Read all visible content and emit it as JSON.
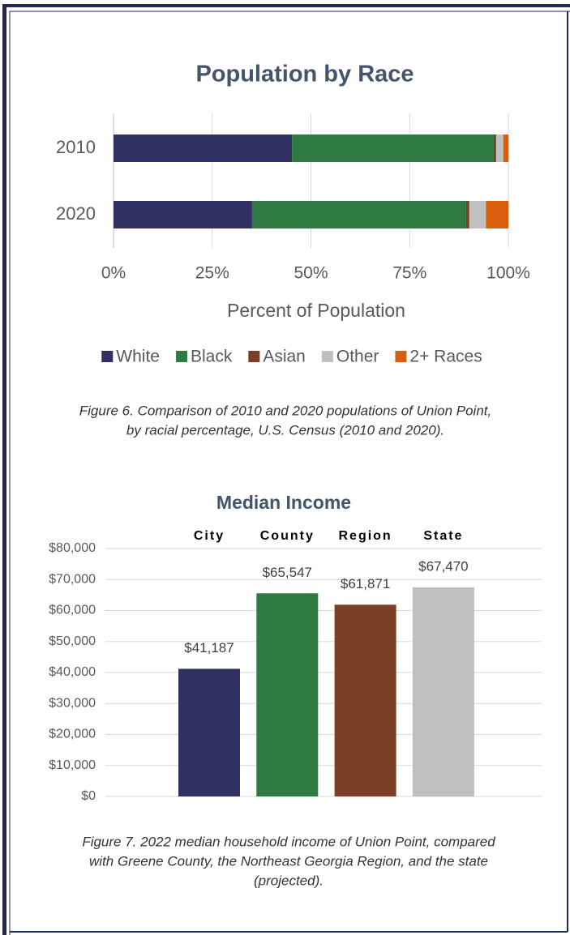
{
  "chart_data": [
    {
      "type": "barh",
      "title": "Population by Race",
      "categories": [
        "2010",
        "2020"
      ],
      "series": [
        {
          "name": "White",
          "color": "#2e3162",
          "values": [
            45.2,
            35.1
          ]
        },
        {
          "name": "Black",
          "color": "#2e7a42",
          "values": [
            51.1,
            54.2
          ]
        },
        {
          "name": "Asian",
          "color": "#7a3f27",
          "values": [
            0.6,
            0.8
          ]
        },
        {
          "name": "Other",
          "color": "#c0c0c0",
          "values": [
            1.8,
            4.2
          ]
        },
        {
          "name": "2+ Races",
          "color": "#d95f0e",
          "values": [
            1.3,
            5.7
          ]
        }
      ],
      "xlim": [
        0,
        100
      ],
      "xticks": [
        {
          "value": 0,
          "label": "0%"
        },
        {
          "value": 25,
          "label": "25%"
        },
        {
          "value": 50,
          "label": "50%"
        },
        {
          "value": 75,
          "label": "75%"
        },
        {
          "value": 100,
          "label": "100%"
        }
      ],
      "xlabel": "Percent of Population",
      "grid": true,
      "legend": "bottom",
      "caption": [
        "Figure 6.  Comparison of 2010 and 2020 populations of Union Point,",
        "by racial percentage, U.S. Census (2010 and 2020)."
      ]
    },
    {
      "type": "bar",
      "title": "Median Income",
      "categories": [
        "City",
        "County",
        "Region",
        "State"
      ],
      "values": [
        41187,
        65547,
        61871,
        67470
      ],
      "value_labels": [
        "$41,187",
        "$65,547",
        "$61,871",
        "$67,470"
      ],
      "colors": [
        "#2e3162",
        "#2e7a42",
        "#7a3f27",
        "#bfbfbf"
      ],
      "ylim": [
        0,
        80000
      ],
      "yticks": [
        {
          "value": 0,
          "label": "$0"
        },
        {
          "value": 10000,
          "label": "$10,000"
        },
        {
          "value": 20000,
          "label": "$20,000"
        },
        {
          "value": 30000,
          "label": "$30,000"
        },
        {
          "value": 40000,
          "label": "$40,000"
        },
        {
          "value": 50000,
          "label": "$50,000"
        },
        {
          "value": 60000,
          "label": "$60,000"
        },
        {
          "value": 70000,
          "label": "$70,000"
        },
        {
          "value": 80000,
          "label": "$80,000"
        }
      ],
      "grid": true,
      "caption": [
        "Figure 7.  2022 median household income of Union Point, compared",
        "with Greene County, the Northeast Georgia Region, and the state",
        "(projected)."
      ]
    }
  ]
}
